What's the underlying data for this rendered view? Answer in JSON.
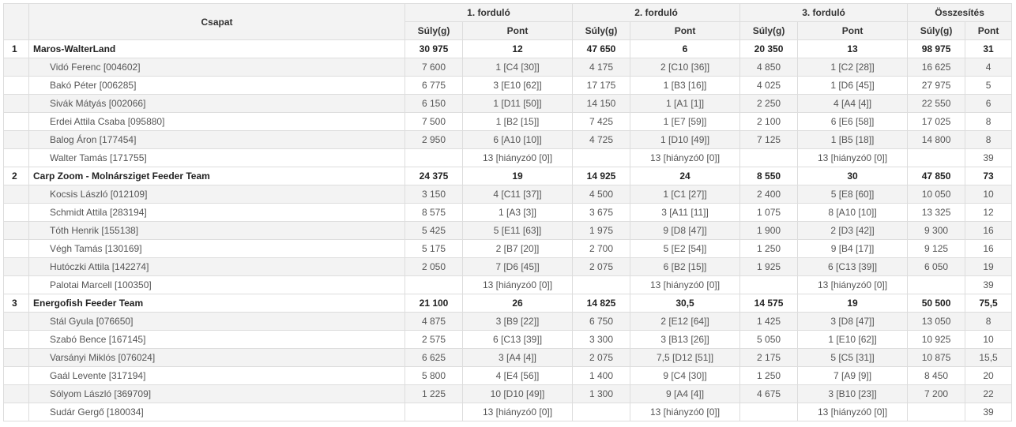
{
  "header": {
    "team_col": "Csapat",
    "rounds": [
      "1. forduló",
      "2. forduló",
      "3. forduló"
    ],
    "total": "Összesítés",
    "weight": "Súly(g)",
    "points": "Pont"
  },
  "teams": [
    {
      "rank": "1",
      "name": "Maros-WalterLand",
      "r1w": "30 975",
      "r1p": "12",
      "r2w": "47 650",
      "r2p": "6",
      "r3w": "20 350",
      "r3p": "13",
      "tw": "98 975",
      "tp": "31",
      "members": [
        {
          "name": "Vidó Ferenc [004602]",
          "r1w": "7 600",
          "r1p": "1 [C4 [30]]",
          "r2w": "4 175",
          "r2p": "2 [C10 [36]]",
          "r3w": "4 850",
          "r3p": "1 [C2 [28]]",
          "tw": "16 625",
          "tp": "4"
        },
        {
          "name": "Bakó Péter [006285]",
          "r1w": "6 775",
          "r1p": "3 [E10 [62]]",
          "r2w": "17 175",
          "r2p": "1 [B3 [16]]",
          "r3w": "4 025",
          "r3p": "1 [D6 [45]]",
          "tw": "27 975",
          "tp": "5"
        },
        {
          "name": "Sivák Mátyás [002066]",
          "r1w": "6 150",
          "r1p": "1 [D11 [50]]",
          "r2w": "14 150",
          "r2p": "1 [A1 [1]]",
          "r3w": "2 250",
          "r3p": "4 [A4 [4]]",
          "tw": "22 550",
          "tp": "6"
        },
        {
          "name": "Erdei Attila Csaba [095880]",
          "r1w": "7 500",
          "r1p": "1 [B2 [15]]",
          "r2w": "7 425",
          "r2p": "1 [E7 [59]]",
          "r3w": "2 100",
          "r3p": "6 [E6 [58]]",
          "tw": "17 025",
          "tp": "8"
        },
        {
          "name": "Balog Áron [177454]",
          "r1w": "2 950",
          "r1p": "6 [A10 [10]]",
          "r2w": "4 725",
          "r2p": "1 [D10 [49]]",
          "r3w": "7 125",
          "r3p": "1 [B5 [18]]",
          "tw": "14 800",
          "tp": "8"
        },
        {
          "name": "Walter Tamás [171755]",
          "r1w": "",
          "r1p": "13 [hiányzó0 [0]]",
          "r2w": "",
          "r2p": "13 [hiányzó0 [0]]",
          "r3w": "",
          "r3p": "13 [hiányzó0 [0]]",
          "tw": "",
          "tp": "39"
        }
      ]
    },
    {
      "rank": "2",
      "name": "Carp Zoom - Molnársziget Feeder Team",
      "r1w": "24 375",
      "r1p": "19",
      "r2w": "14 925",
      "r2p": "24",
      "r3w": "8 550",
      "r3p": "30",
      "tw": "47 850",
      "tp": "73",
      "members": [
        {
          "name": "Kocsis László [012109]",
          "r1w": "3 150",
          "r1p": "4 [C11 [37]]",
          "r2w": "4 500",
          "r2p": "1 [C1 [27]]",
          "r3w": "2 400",
          "r3p": "5 [E8 [60]]",
          "tw": "10 050",
          "tp": "10"
        },
        {
          "name": "Schmidt Attila [283194]",
          "r1w": "8 575",
          "r1p": "1 [A3 [3]]",
          "r2w": "3 675",
          "r2p": "3 [A11 [11]]",
          "r3w": "1 075",
          "r3p": "8 [A10 [10]]",
          "tw": "13 325",
          "tp": "12"
        },
        {
          "name": "Tóth Henrik [155138]",
          "r1w": "5 425",
          "r1p": "5 [E11 [63]]",
          "r2w": "1 975",
          "r2p": "9 [D8 [47]]",
          "r3w": "1 900",
          "r3p": "2 [D3 [42]]",
          "tw": "9 300",
          "tp": "16"
        },
        {
          "name": "Végh Tamás [130169]",
          "r1w": "5 175",
          "r1p": "2 [B7 [20]]",
          "r2w": "2 700",
          "r2p": "5 [E2 [54]]",
          "r3w": "1 250",
          "r3p": "9 [B4 [17]]",
          "tw": "9 125",
          "tp": "16"
        },
        {
          "name": "Hutóczki Attila [142274]",
          "r1w": "2 050",
          "r1p": "7 [D6 [45]]",
          "r2w": "2 075",
          "r2p": "6 [B2 [15]]",
          "r3w": "1 925",
          "r3p": "6 [C13 [39]]",
          "tw": "6 050",
          "tp": "19"
        },
        {
          "name": "Palotai Marcell [100350]",
          "r1w": "",
          "r1p": "13 [hiányzó0 [0]]",
          "r2w": "",
          "r2p": "13 [hiányzó0 [0]]",
          "r3w": "",
          "r3p": "13 [hiányzó0 [0]]",
          "tw": "",
          "tp": "39"
        }
      ]
    },
    {
      "rank": "3",
      "name": "Energofish Feeder Team",
      "r1w": "21 100",
      "r1p": "26",
      "r2w": "14 825",
      "r2p": "30,5",
      "r3w": "14 575",
      "r3p": "19",
      "tw": "50 500",
      "tp": "75,5",
      "members": [
        {
          "name": "Stál Gyula [076650]",
          "r1w": "4 875",
          "r1p": "3 [B9 [22]]",
          "r2w": "6 750",
          "r2p": "2 [E12 [64]]",
          "r3w": "1 425",
          "r3p": "3 [D8 [47]]",
          "tw": "13 050",
          "tp": "8"
        },
        {
          "name": "Szabó Bence [167145]",
          "r1w": "2 575",
          "r1p": "6 [C13 [39]]",
          "r2w": "3 300",
          "r2p": "3 [B13 [26]]",
          "r3w": "5 050",
          "r3p": "1 [E10 [62]]",
          "tw": "10 925",
          "tp": "10"
        },
        {
          "name": "Varsányi Miklós [076024]",
          "r1w": "6 625",
          "r1p": "3 [A4 [4]]",
          "r2w": "2 075",
          "r2p": "7,5 [D12 [51]]",
          "r3w": "2 175",
          "r3p": "5 [C5 [31]]",
          "tw": "10 875",
          "tp": "15,5"
        },
        {
          "name": "Gaál Levente [317194]",
          "r1w": "5 800",
          "r1p": "4 [E4 [56]]",
          "r2w": "1 400",
          "r2p": "9 [C4 [30]]",
          "r3w": "1 250",
          "r3p": "7 [A9 [9]]",
          "tw": "8 450",
          "tp": "20"
        },
        {
          "name": "Sólyom László [369709]",
          "r1w": "1 225",
          "r1p": "10 [D10 [49]]",
          "r2w": "1 300",
          "r2p": "9 [A4 [4]]",
          "r3w": "4 675",
          "r3p": "3 [B10 [23]]",
          "tw": "7 200",
          "tp": "22"
        },
        {
          "name": "Sudár Gergő [180034]",
          "r1w": "",
          "r1p": "13 [hiányzó0 [0]]",
          "r2w": "",
          "r2p": "13 [hiányzó0 [0]]",
          "r3w": "",
          "r3p": "13 [hiányzó0 [0]]",
          "tw": "",
          "tp": "39"
        }
      ]
    }
  ]
}
